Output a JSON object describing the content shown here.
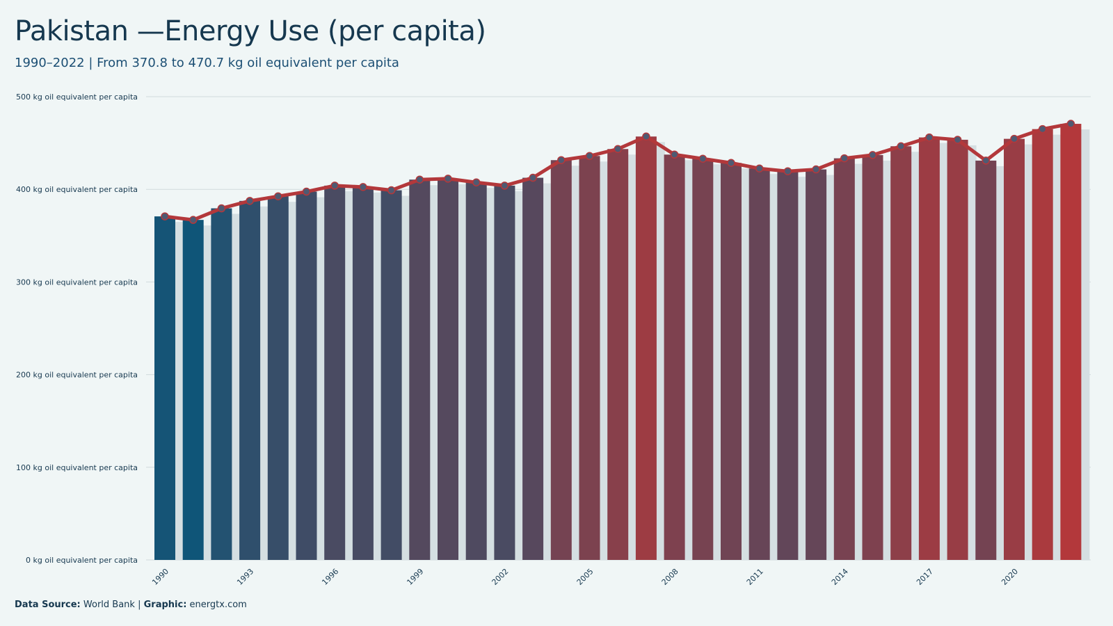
{
  "header": {
    "title": "Pakistan —Energy Use (per capita)",
    "subtitle": "1990–2022 | From 370.8 to 470.7 kg oil equivalent per capita"
  },
  "caption": {
    "source_label": "Data Source:",
    "source_value": "World Bank",
    "separator": "|",
    "graphic_label": "Graphic:",
    "graphic_value": "energtx.com"
  },
  "colors": {
    "background": "#f0f6f6",
    "low": "#0f5578",
    "high": "#b3383b",
    "line": "#b3383b",
    "point_fill": "#4f5a72",
    "shadow_bar": "#d5dfe2",
    "grid": "#d0dadc"
  },
  "chart_data": {
    "type": "bar",
    "title": "Pakistan —Energy Use (per capita)",
    "subtitle": "1990–2022 | From 370.8 to 470.7 kg oil equivalent per capita",
    "xlabel": "",
    "ylabel": "",
    "ylim": [
      0,
      500
    ],
    "yticks": [
      0,
      100,
      200,
      300,
      400,
      500
    ],
    "ytick_suffix": " kg oil equivalent per capita",
    "xtick_labels": [
      "1990",
      "1993",
      "1996",
      "1999",
      "2002",
      "2005",
      "2008",
      "2011",
      "2014",
      "2017",
      "2020"
    ],
    "grid": true,
    "legend": "none",
    "overlay": "line with markers",
    "x": [
      1990,
      1991,
      1992,
      1993,
      1994,
      1995,
      1996,
      1997,
      1998,
      1999,
      2000,
      2001,
      2002,
      2003,
      2004,
      2005,
      2006,
      2007,
      2008,
      2009,
      2010,
      2011,
      2012,
      2013,
      2014,
      2015,
      2016,
      2017,
      2018,
      2019,
      2020,
      2021,
      2022
    ],
    "values": [
      370.8,
      367.0,
      379.5,
      387.5,
      392.5,
      397.5,
      404.0,
      402.5,
      399.0,
      410.5,
      411.5,
      407.5,
      404.0,
      412.5,
      431.5,
      436.0,
      443.5,
      457.0,
      437.5,
      433.0,
      428.5,
      422.5,
      419.5,
      421.5,
      433.5,
      437.0,
      446.5,
      456.0,
      453.5,
      431.0,
      454.5,
      465.0,
      470.7
    ]
  }
}
